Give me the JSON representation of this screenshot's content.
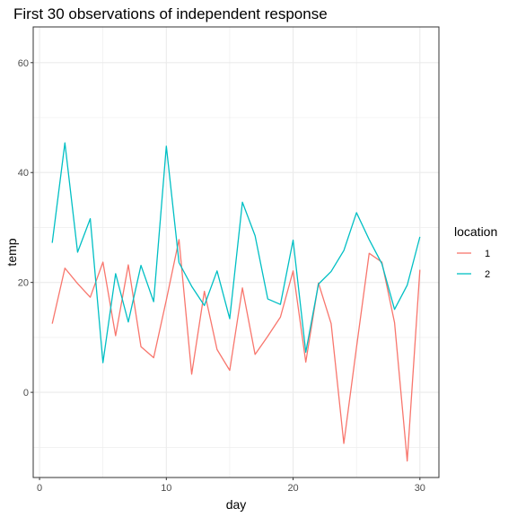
{
  "chart_data": {
    "type": "line",
    "title": "First 30 observations of independent response",
    "xlabel": "day",
    "ylabel": "temp",
    "xlim": [
      -0.5,
      31.5
    ],
    "ylim": [
      -15.5,
      66.5
    ],
    "x_ticks": [
      0,
      10,
      20,
      30
    ],
    "x_tick_labels": [
      "0",
      "10",
      "20",
      "30"
    ],
    "x_minor_ticks": [
      5,
      15,
      25
    ],
    "y_ticks": [
      0,
      20,
      40,
      60
    ],
    "y_tick_labels": [
      "0",
      "20",
      "40",
      "60"
    ],
    "y_minor_ticks": [
      -10,
      10,
      30,
      50
    ],
    "grid": true,
    "legend": {
      "title": "location",
      "placement": "right"
    },
    "x": [
      1,
      2,
      3,
      4,
      5,
      6,
      7,
      8,
      9,
      10,
      11,
      12,
      13,
      14,
      15,
      16,
      17,
      18,
      19,
      20,
      21,
      22,
      23,
      24,
      25,
      26,
      27,
      28,
      29,
      30
    ],
    "series": [
      {
        "name": "1",
        "color": "#F8766D",
        "values": [
          12.5,
          22.6,
          19.8,
          17.3,
          23.7,
          10.3,
          23.2,
          8.3,
          6.3,
          16.8,
          27.8,
          3.3,
          18.4,
          7.8,
          4.0,
          19.0,
          6.9,
          10.2,
          13.7,
          22.1,
          5.5,
          19.9,
          12.5,
          -9.3,
          8.2,
          25.3,
          23.7,
          12.7,
          -12.5,
          22.3
        ]
      },
      {
        "name": "2",
        "color": "#00BFC4",
        "values": [
          27.2,
          45.4,
          25.5,
          31.6,
          5.4,
          21.6,
          12.8,
          23.1,
          16.5,
          44.8,
          23.6,
          19.3,
          15.8,
          22.1,
          13.4,
          34.6,
          28.5,
          17.0,
          16.0,
          27.7,
          7.3,
          19.7,
          22.0,
          25.8,
          32.7,
          27.8,
          23.4,
          15.1,
          19.5,
          28.3
        ]
      }
    ]
  }
}
